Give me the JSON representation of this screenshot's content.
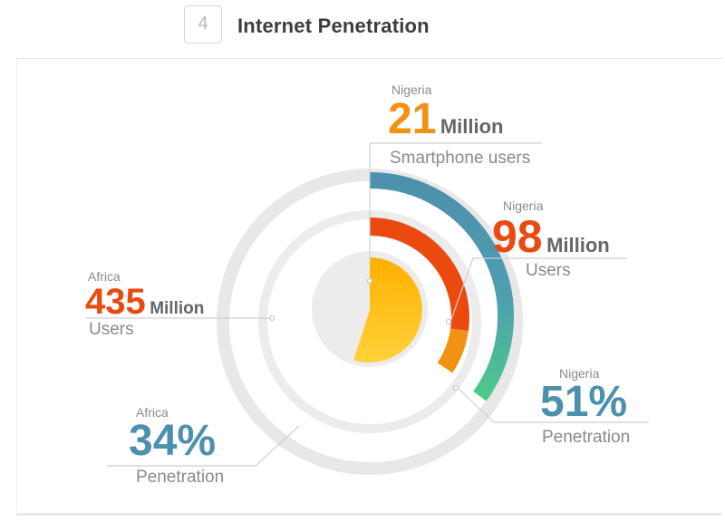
{
  "header": {
    "step_number": "4",
    "title": "Internet Penetration"
  },
  "colors": {
    "smartphones": "#f39212",
    "users": "#ea4a10",
    "penetration": "#4d90ad",
    "penetration_end": "#4cc98a",
    "africa_users": "#ffc11c",
    "ring": "#e6e6e6"
  },
  "chart_data": {
    "type": "radial-bar",
    "title": "Internet Penetration",
    "series": [
      {
        "region": "Nigeria",
        "value": 21,
        "unit": "Million",
        "label": "Smartphone users",
        "ring": "outer-text"
      },
      {
        "region": "Nigeria",
        "value": 98,
        "unit": "Million",
        "label": "Users",
        "ring": "middle"
      },
      {
        "region": "Nigeria",
        "value": 51,
        "unit": "%",
        "label": "Penetration",
        "ring": "outer"
      },
      {
        "region": "Africa",
        "value": 435,
        "unit": "Million",
        "label": "Users",
        "ring": "inner"
      },
      {
        "region": "Africa",
        "value": 34,
        "unit": "%",
        "label": "Penetration",
        "ring": "base"
      }
    ],
    "labels": {
      "nigeria_smartphones": {
        "region": "Nigeria",
        "value": "21",
        "unit": "Million",
        "caption": "Smartphone users"
      },
      "nigeria_users": {
        "region": "Nigeria",
        "value": "98",
        "unit": "Million",
        "caption": "Users"
      },
      "nigeria_penetration": {
        "region": "Nigeria",
        "value": "51%",
        "caption": "Penetration"
      },
      "africa_users": {
        "region": "Africa",
        "value": "435",
        "unit": "Million",
        "caption": "Users"
      },
      "africa_penetration": {
        "region": "Africa",
        "value": "34%",
        "caption": "Penetration"
      }
    }
  }
}
